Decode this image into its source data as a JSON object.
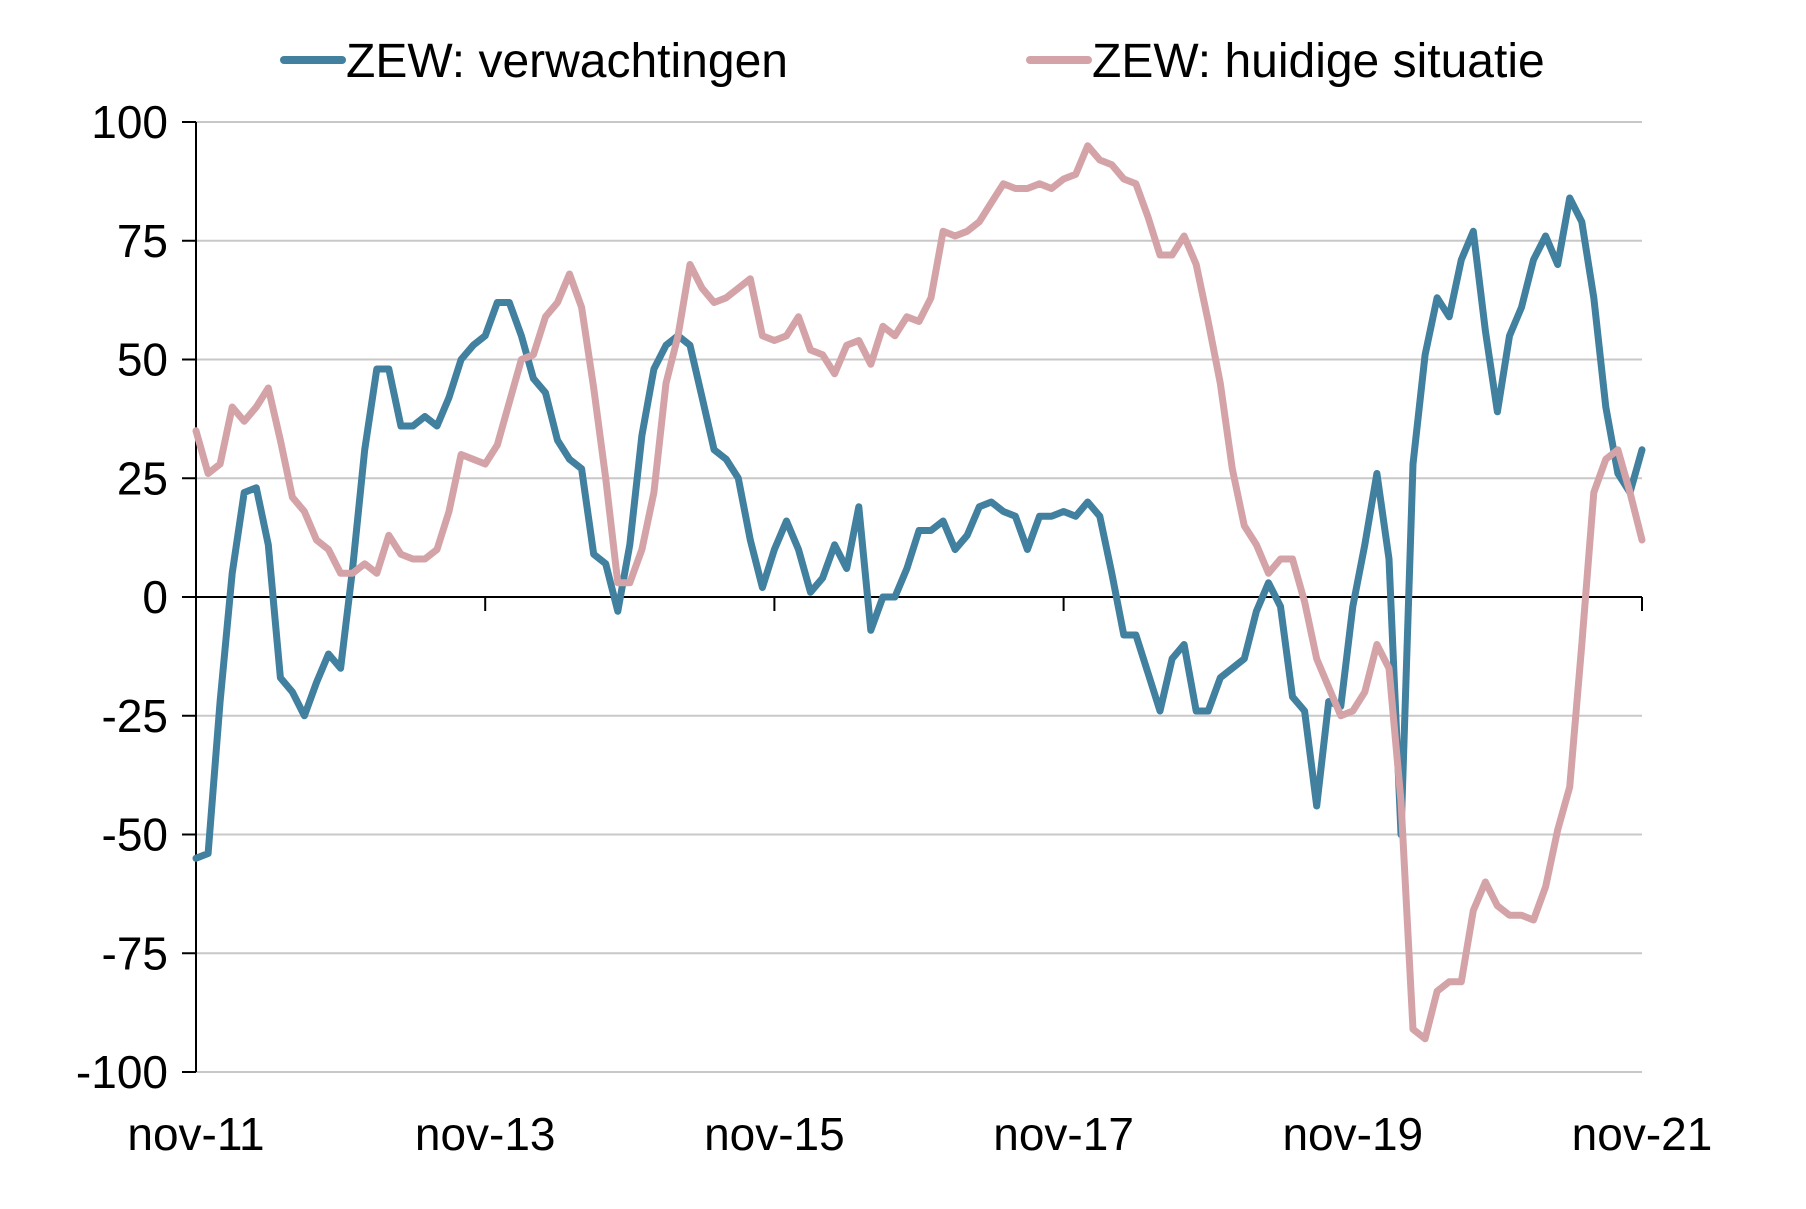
{
  "chart_data": {
    "type": "line",
    "title": "",
    "xlabel": "",
    "ylabel": "",
    "ylim": [
      -100,
      100
    ],
    "yticks": [
      100,
      75,
      50,
      25,
      0,
      -25,
      -50,
      -75,
      -100
    ],
    "ytick_labels": [
      "100",
      "75",
      "50",
      "25",
      "0",
      "-25",
      "-50",
      "-75",
      "-100"
    ],
    "xlim": [
      "2011-11",
      "2021-11"
    ],
    "xticks": [
      "2011-11",
      "2013-11",
      "2015-11",
      "2017-11",
      "2019-11",
      "2021-11"
    ],
    "xtick_labels": [
      "nov-11",
      "nov-13",
      "nov-15",
      "nov-17",
      "nov-19",
      "nov-21"
    ],
    "grid": true,
    "legend_position": "top",
    "series": [
      {
        "name": "ZEW: verwachtingen",
        "color": "#41809f",
        "points": [
          [
            "2011-11",
            -55
          ],
          [
            "2011-12",
            -54
          ],
          [
            "2012-01",
            -22
          ],
          [
            "2012-02",
            5
          ],
          [
            "2012-03",
            22
          ],
          [
            "2012-04",
            23
          ],
          [
            "2012-05",
            11
          ],
          [
            "2012-06",
            -17
          ],
          [
            "2012-07",
            -20
          ],
          [
            "2012-08",
            -25
          ],
          [
            "2012-09",
            -18
          ],
          [
            "2012-10",
            -12
          ],
          [
            "2012-11",
            -15
          ],
          [
            "2012-12",
            6
          ],
          [
            "2013-01",
            31
          ],
          [
            "2013-02",
            48
          ],
          [
            "2013-03",
            48
          ],
          [
            "2013-04",
            36
          ],
          [
            "2013-05",
            36
          ],
          [
            "2013-06",
            38
          ],
          [
            "2013-07",
            36
          ],
          [
            "2013-08",
            42
          ],
          [
            "2013-09",
            50
          ],
          [
            "2013-10",
            53
          ],
          [
            "2013-11",
            55
          ],
          [
            "2013-12",
            62
          ],
          [
            "2014-01",
            62
          ],
          [
            "2014-02",
            55
          ],
          [
            "2014-03",
            46
          ],
          [
            "2014-04",
            43
          ],
          [
            "2014-05",
            33
          ],
          [
            "2014-06",
            29
          ],
          [
            "2014-07",
            27
          ],
          [
            "2014-08",
            9
          ],
          [
            "2014-09",
            7
          ],
          [
            "2014-10",
            -3
          ],
          [
            "2014-11",
            11
          ],
          [
            "2014-12",
            34
          ],
          [
            "2015-01",
            48
          ],
          [
            "2015-02",
            53
          ],
          [
            "2015-03",
            55
          ],
          [
            "2015-04",
            53
          ],
          [
            "2015-05",
            42
          ],
          [
            "2015-06",
            31
          ],
          [
            "2015-07",
            29
          ],
          [
            "2015-08",
            25
          ],
          [
            "2015-09",
            12
          ],
          [
            "2015-10",
            2
          ],
          [
            "2015-11",
            10
          ],
          [
            "2015-12",
            16
          ],
          [
            "2016-01",
            10
          ],
          [
            "2016-02",
            1
          ],
          [
            "2016-03",
            4
          ],
          [
            "2016-04",
            11
          ],
          [
            "2016-05",
            6
          ],
          [
            "2016-06",
            19
          ],
          [
            "2016-07",
            -7
          ],
          [
            "2016-08",
            0
          ],
          [
            "2016-09",
            0
          ],
          [
            "2016-10",
            6
          ],
          [
            "2016-11",
            14
          ],
          [
            "2016-12",
            14
          ],
          [
            "2017-01",
            16
          ],
          [
            "2017-02",
            10
          ],
          [
            "2017-03",
            13
          ],
          [
            "2017-04",
            19
          ],
          [
            "2017-05",
            20
          ],
          [
            "2017-06",
            18
          ],
          [
            "2017-07",
            17
          ],
          [
            "2017-08",
            10
          ],
          [
            "2017-09",
            17
          ],
          [
            "2017-10",
            17
          ],
          [
            "2017-11",
            18
          ],
          [
            "2017-12",
            17
          ],
          [
            "2018-01",
            20
          ],
          [
            "2018-02",
            17
          ],
          [
            "2018-03",
            5
          ],
          [
            "2018-04",
            -8
          ],
          [
            "2018-05",
            -8
          ],
          [
            "2018-06",
            -16
          ],
          [
            "2018-07",
            -24
          ],
          [
            "2018-08",
            -13
          ],
          [
            "2018-09",
            -10
          ],
          [
            "2018-10",
            -24
          ],
          [
            "2018-11",
            -24
          ],
          [
            "2018-12",
            -17
          ],
          [
            "2019-01",
            -15
          ],
          [
            "2019-02",
            -13
          ],
          [
            "2019-03",
            -3
          ],
          [
            "2019-04",
            3
          ],
          [
            "2019-05",
            -2
          ],
          [
            "2019-06",
            -21
          ],
          [
            "2019-07",
            -24
          ],
          [
            "2019-08",
            -44
          ],
          [
            "2019-09",
            -22
          ],
          [
            "2019-10",
            -23
          ],
          [
            "2019-11",
            -2
          ],
          [
            "2019-12",
            11
          ],
          [
            "2020-01",
            26
          ],
          [
            "2020-02",
            8
          ],
          [
            "2020-03",
            -50
          ],
          [
            "2020-04",
            28
          ],
          [
            "2020-05",
            51
          ],
          [
            "2020-06",
            63
          ],
          [
            "2020-07",
            59
          ],
          [
            "2020-08",
            71
          ],
          [
            "2020-09",
            77
          ],
          [
            "2020-10",
            56
          ],
          [
            "2020-11",
            39
          ],
          [
            "2020-12",
            55
          ],
          [
            "2021-01",
            61
          ],
          [
            "2021-02",
            71
          ],
          [
            "2021-03",
            76
          ],
          [
            "2021-04",
            70
          ],
          [
            "2021-05",
            84
          ],
          [
            "2021-06",
            79
          ],
          [
            "2021-07",
            63
          ],
          [
            "2021-08",
            40
          ],
          [
            "2021-09",
            26
          ],
          [
            "2021-10",
            22
          ],
          [
            "2021-11",
            31
          ]
        ]
      },
      {
        "name": "ZEW: huidige situatie",
        "color": "#d4a3a8",
        "points": [
          [
            "2011-11",
            35
          ],
          [
            "2011-12",
            26
          ],
          [
            "2012-01",
            28
          ],
          [
            "2012-02",
            40
          ],
          [
            "2012-03",
            37
          ],
          [
            "2012-04",
            40
          ],
          [
            "2012-05",
            44
          ],
          [
            "2012-06",
            33
          ],
          [
            "2012-07",
            21
          ],
          [
            "2012-08",
            18
          ],
          [
            "2012-09",
            12
          ],
          [
            "2012-10",
            10
          ],
          [
            "2012-11",
            5
          ],
          [
            "2012-12",
            5
          ],
          [
            "2013-01",
            7
          ],
          [
            "2013-02",
            5
          ],
          [
            "2013-03",
            13
          ],
          [
            "2013-04",
            9
          ],
          [
            "2013-05",
            8
          ],
          [
            "2013-06",
            8
          ],
          [
            "2013-07",
            10
          ],
          [
            "2013-08",
            18
          ],
          [
            "2013-09",
            30
          ],
          [
            "2013-10",
            29
          ],
          [
            "2013-11",
            28
          ],
          [
            "2013-12",
            32
          ],
          [
            "2014-01",
            41
          ],
          [
            "2014-02",
            50
          ],
          [
            "2014-03",
            51
          ],
          [
            "2014-04",
            59
          ],
          [
            "2014-05",
            62
          ],
          [
            "2014-06",
            68
          ],
          [
            "2014-07",
            61
          ],
          [
            "2014-08",
            44
          ],
          [
            "2014-09",
            25
          ],
          [
            "2014-10",
            3
          ],
          [
            "2014-11",
            3
          ],
          [
            "2014-12",
            10
          ],
          [
            "2015-01",
            22
          ],
          [
            "2015-02",
            45
          ],
          [
            "2015-03",
            55
          ],
          [
            "2015-04",
            70
          ],
          [
            "2015-05",
            65
          ],
          [
            "2015-06",
            62
          ],
          [
            "2015-07",
            63
          ],
          [
            "2015-08",
            65
          ],
          [
            "2015-09",
            67
          ],
          [
            "2015-10",
            55
          ],
          [
            "2015-11",
            54
          ],
          [
            "2015-12",
            55
          ],
          [
            "2016-01",
            59
          ],
          [
            "2016-02",
            52
          ],
          [
            "2016-03",
            51
          ],
          [
            "2016-04",
            47
          ],
          [
            "2016-05",
            53
          ],
          [
            "2016-06",
            54
          ],
          [
            "2016-07",
            49
          ],
          [
            "2016-08",
            57
          ],
          [
            "2016-09",
            55
          ],
          [
            "2016-10",
            59
          ],
          [
            "2016-11",
            58
          ],
          [
            "2016-12",
            63
          ],
          [
            "2017-01",
            77
          ],
          [
            "2017-02",
            76
          ],
          [
            "2017-03",
            77
          ],
          [
            "2017-04",
            79
          ],
          [
            "2017-05",
            83
          ],
          [
            "2017-06",
            87
          ],
          [
            "2017-07",
            86
          ],
          [
            "2017-08",
            86
          ],
          [
            "2017-09",
            87
          ],
          [
            "2017-10",
            86
          ],
          [
            "2017-11",
            88
          ],
          [
            "2017-12",
            89
          ],
          [
            "2018-01",
            95
          ],
          [
            "2018-02",
            92
          ],
          [
            "2018-03",
            91
          ],
          [
            "2018-04",
            88
          ],
          [
            "2018-05",
            87
          ],
          [
            "2018-06",
            80
          ],
          [
            "2018-07",
            72
          ],
          [
            "2018-08",
            72
          ],
          [
            "2018-09",
            76
          ],
          [
            "2018-10",
            70
          ],
          [
            "2018-11",
            58
          ],
          [
            "2018-12",
            45
          ],
          [
            "2019-01",
            27
          ],
          [
            "2019-02",
            15
          ],
          [
            "2019-03",
            11
          ],
          [
            "2019-04",
            5
          ],
          [
            "2019-05",
            8
          ],
          [
            "2019-06",
            8
          ],
          [
            "2019-07",
            -1
          ],
          [
            "2019-08",
            -13
          ],
          [
            "2019-09",
            -19
          ],
          [
            "2019-10",
            -25
          ],
          [
            "2019-11",
            -24
          ],
          [
            "2019-12",
            -20
          ],
          [
            "2020-01",
            -10
          ],
          [
            "2020-02",
            -15
          ],
          [
            "2020-03",
            -43
          ],
          [
            "2020-04",
            -91
          ],
          [
            "2020-05",
            -93
          ],
          [
            "2020-06",
            -83
          ],
          [
            "2020-07",
            -81
          ],
          [
            "2020-08",
            -81
          ],
          [
            "2020-09",
            -66
          ],
          [
            "2020-10",
            -60
          ],
          [
            "2020-11",
            -65
          ],
          [
            "2020-12",
            -67
          ],
          [
            "2021-01",
            -67
          ],
          [
            "2021-02",
            -68
          ],
          [
            "2021-03",
            -61
          ],
          [
            "2021-04",
            -49
          ],
          [
            "2021-05",
            -40
          ],
          [
            "2021-06",
            -10
          ],
          [
            "2021-07",
            22
          ],
          [
            "2021-08",
            29
          ],
          [
            "2021-09",
            31
          ],
          [
            "2021-10",
            22
          ],
          [
            "2021-11",
            12
          ]
        ]
      }
    ]
  }
}
